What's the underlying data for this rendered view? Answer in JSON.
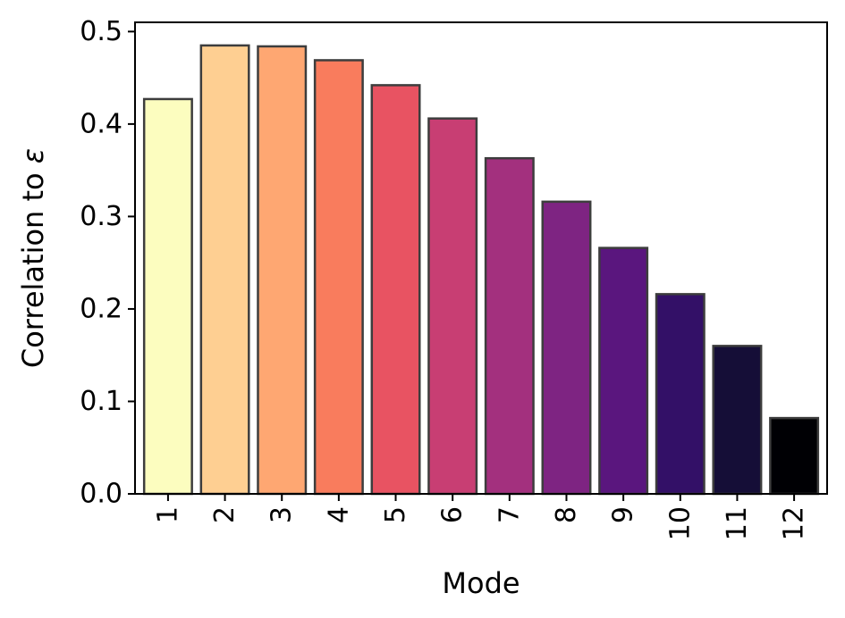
{
  "chart_data": {
    "type": "bar",
    "categories": [
      "1",
      "2",
      "3",
      "4",
      "5",
      "6",
      "7",
      "8",
      "9",
      "10",
      "11",
      "12"
    ],
    "values": [
      0.427,
      0.485,
      0.484,
      0.469,
      0.442,
      0.406,
      0.363,
      0.316,
      0.266,
      0.216,
      0.16,
      0.082
    ],
    "title": "",
    "xlabel": "Mode",
    "ylabel_prefix": "Correlation to ",
    "ylabel_symbol": "ε",
    "ylim": [
      0,
      0.51
    ],
    "yticks": [
      "0.0",
      "0.1",
      "0.2",
      "0.3",
      "0.4",
      "0.5"
    ],
    "ytick_values": [
      0.0,
      0.1,
      0.2,
      0.3,
      0.4,
      0.5
    ],
    "colors": [
      "#fcfdbf",
      "#fecf92",
      "#fea772",
      "#f97c5d",
      "#e85362",
      "#c83e73",
      "#a3307e",
      "#7e2482",
      "#5a167e",
      "#331067",
      "#150e37",
      "#000004"
    ],
    "edge_color": "#3d3d3d",
    "grid": false
  }
}
